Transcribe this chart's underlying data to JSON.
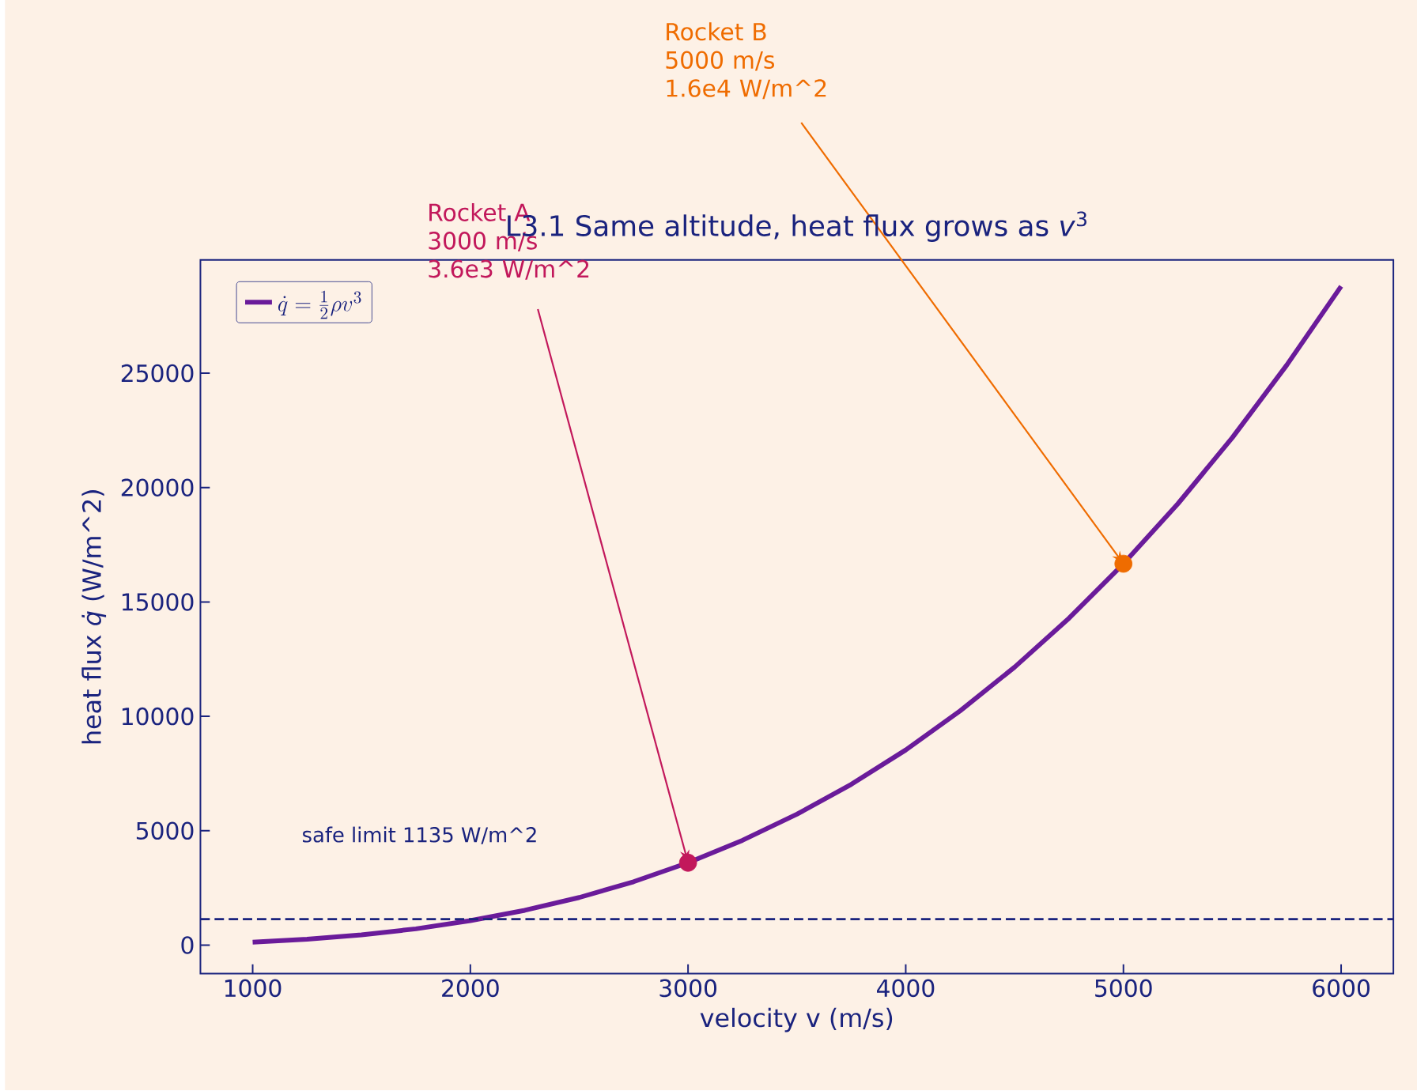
{
  "chart_data": {
    "type": "line",
    "title": "L3.1  Same altitude, heat flux grows as *v*$^{3}$",
    "xlabel": "velocity v  (m/s)",
    "ylabel": "heat flux  *q̇*  (W/m^2)",
    "xlim": [
      760,
      6240
    ],
    "ylim": [
      -1250,
      29950
    ],
    "xticks": [
      1000,
      2000,
      3000,
      4000,
      5000,
      6000
    ],
    "yticks": [
      0,
      5000,
      10000,
      15000,
      20000,
      25000
    ],
    "legend": "top left",
    "series": [
      {
        "name": "\\dot{q} = \\frac{1}{2}\\rho v^{3}",
        "color": "#6a1b9a",
        "line_style": "solid",
        "x": [
          1000,
          1250,
          1500,
          1750,
          2000,
          2250,
          2500,
          2750,
          3000,
          3250,
          3500,
          3750,
          4000,
          4250,
          4500,
          4750,
          5000,
          5250,
          5500,
          5750,
          6000
        ],
        "values": [
          130,
          260,
          450,
          710,
          1070,
          1520,
          2080,
          2770,
          3600,
          4580,
          5720,
          7030,
          8530,
          10240,
          12150,
          14290,
          16670,
          19290,
          22180,
          25350,
          28800
        ]
      },
      {
        "type": "scatter",
        "marker": "circle",
        "x": [
          3000,
          5000
        ],
        "values": [
          3600,
          16670
        ],
        "colors": [
          "#c2185b",
          "#ef6c00"
        ]
      }
    ],
    "ref_lines": [
      {
        "axis": "y",
        "value": 1135,
        "label": "safe limit 1135 W/m^2",
        "color": "#1a237e",
        "line_style": "dashed"
      }
    ],
    "annotations": [
      {
        "text": "Rocket A\n3000 m/s\n3.6e3 W/m^2",
        "x": 3000,
        "y": 3600
      },
      {
        "text": "Rocket B\n5000 m/s\n1.6e4 W/m^2",
        "x": 5000,
        "y": 16670
      }
    ]
  }
}
